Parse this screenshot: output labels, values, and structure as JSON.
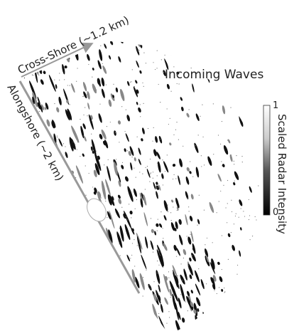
{
  "labels": {
    "cross_shore": "Cross-Shore (~1.2 km)",
    "alongshore": "Alongshore (~2 km)",
    "incoming_waves": "Incoming Waves"
  },
  "colorbar": {
    "title": "Scaled Radar Intensity",
    "ticks": [
      1,
      0
    ]
  }
}
